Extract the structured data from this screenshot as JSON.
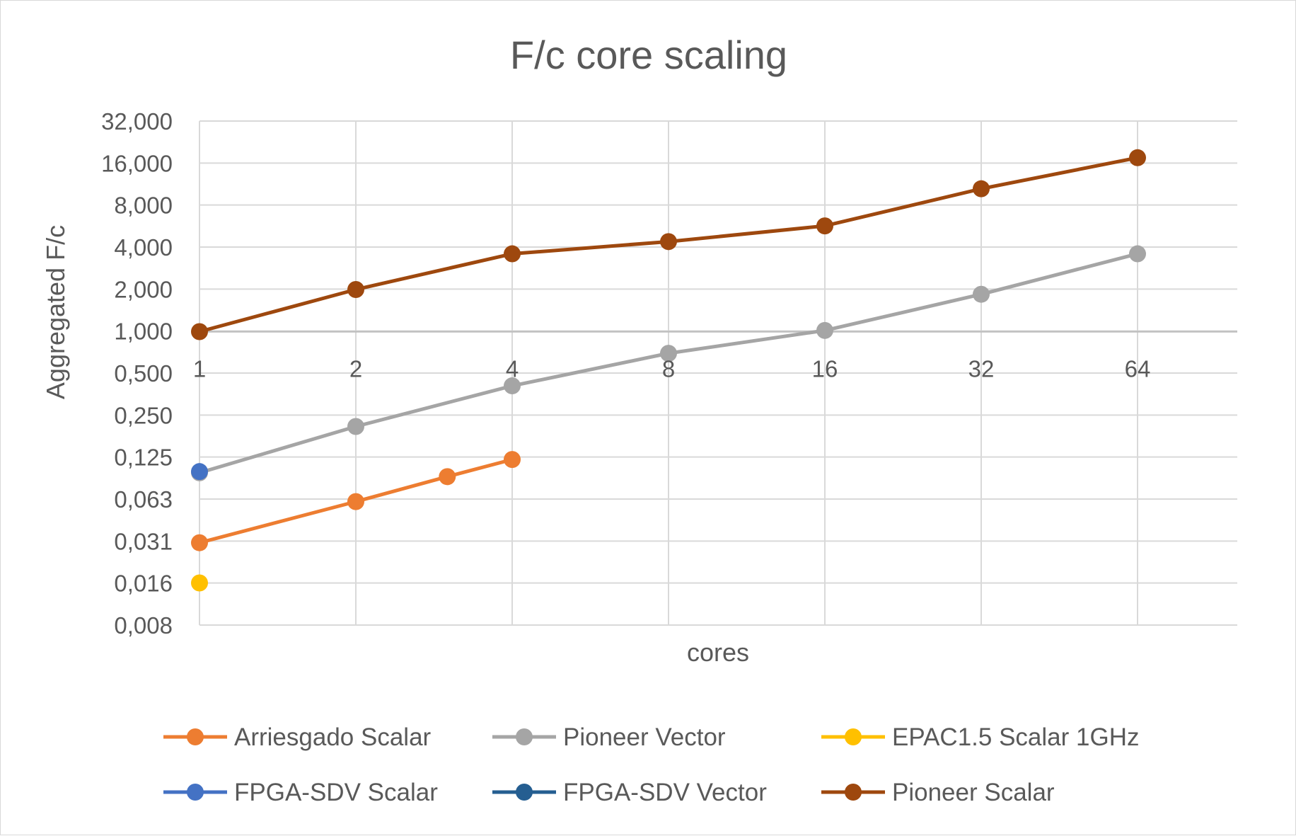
{
  "chart_data": {
    "type": "line",
    "title": "F/c core scaling",
    "xlabel": "cores",
    "ylabel": "Aggregated F/c",
    "y_scale": "log2",
    "ylim": [
      0.008,
      32
    ],
    "y_tick_labels": [
      "0,008",
      "0,016",
      "0,031",
      "0,063",
      "0,125",
      "0,250",
      "0,500",
      "1,000",
      "2,000",
      "4,000",
      "8,000",
      "16,000",
      "32,000"
    ],
    "x_scale": "log2",
    "x_categories": [
      "1",
      "2",
      "4",
      "8",
      "16",
      "32",
      "64"
    ],
    "x_axis_crosses_y_at": 1,
    "grid": true,
    "legend_position": "bottom",
    "series": [
      {
        "name": "Arriesgado Scalar",
        "color": "#ED7D31",
        "x": [
          1,
          2,
          3,
          4
        ],
        "y": [
          0.031,
          0.061,
          0.092,
          0.122
        ]
      },
      {
        "name": "Pioneer Vector",
        "color": "#A5A5A5",
        "x": [
          1,
          2,
          4,
          8,
          16,
          32,
          64
        ],
        "y": [
          0.098,
          0.21,
          0.41,
          0.7,
          1.02,
          1.85,
          3.6
        ]
      },
      {
        "name": "EPAC1.5 Scalar  1GHz",
        "color": "#FFC000",
        "x": [
          1
        ],
        "y": [
          0.016
        ]
      },
      {
        "name": "FPGA-SDV Scalar",
        "color": "#4472C4",
        "x": [
          1
        ],
        "y": [
          0.1
        ]
      },
      {
        "name": "FPGA-SDV Vector",
        "color": "#255E91",
        "x": [],
        "y": []
      },
      {
        "name": "Pioneer Scalar",
        "color": "#9E480E",
        "x": [
          1,
          2,
          4,
          8,
          16,
          32,
          64
        ],
        "y": [
          1.0,
          2.0,
          3.6,
          4.4,
          5.7,
          10.5,
          17.5
        ]
      }
    ]
  }
}
